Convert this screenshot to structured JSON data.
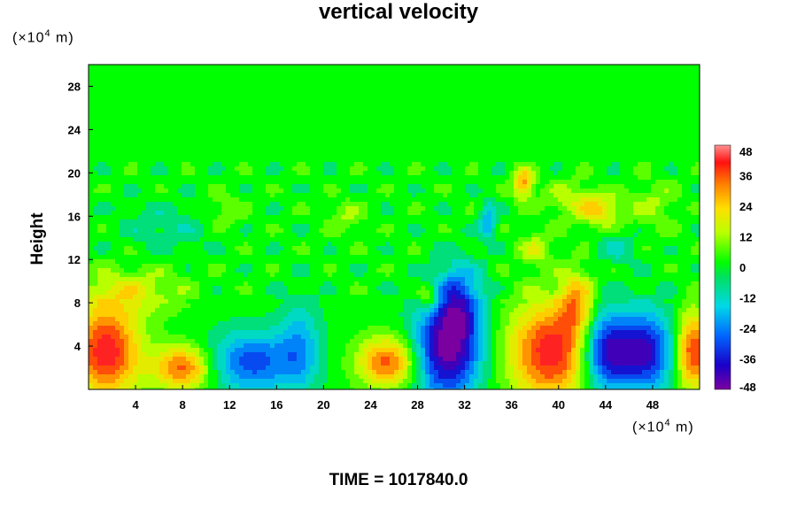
{
  "chart_data": {
    "type": "heatmap",
    "title": "vertical velocity",
    "ylabel": "Height",
    "y_unit": {
      "prefix": "(×10",
      "exp": "4",
      "suffix": " m)"
    },
    "x_unit": {
      "prefix": "(×10",
      "exp": "4",
      "suffix": " m)"
    },
    "xlim": [
      0,
      52
    ],
    "ylim": [
      0,
      30
    ],
    "x_ticks": [
      "4",
      "8",
      "12",
      "16",
      "20",
      "24",
      "28",
      "32",
      "36",
      "40",
      "44",
      "48"
    ],
    "y_ticks": [
      "4",
      "8",
      "12",
      "16",
      "20",
      "24",
      "28"
    ],
    "colorbar": {
      "min": -48,
      "max": 48,
      "ticks": [
        "48",
        "36",
        "24",
        "12",
        "0",
        "-12",
        "-24",
        "-36",
        "-48"
      ]
    },
    "features": [
      {
        "x": 1.5,
        "y": 3.5,
        "sx": 2.0,
        "sy": 3.0,
        "value": 44
      },
      {
        "x": 8.0,
        "y": 2.0,
        "sx": 1.7,
        "sy": 1.4,
        "value": 36
      },
      {
        "x": 14.0,
        "y": 2.5,
        "sx": 2.6,
        "sy": 2.0,
        "value": -30
      },
      {
        "x": 18.0,
        "y": 4.0,
        "sx": 1.2,
        "sy": 3.0,
        "value": -18
      },
      {
        "x": 25.5,
        "y": 2.5,
        "sx": 1.8,
        "sy": 1.6,
        "value": 36
      },
      {
        "x": 30.5,
        "y": 3.5,
        "sx": 2.0,
        "sy": 3.2,
        "value": -46
      },
      {
        "x": 31.5,
        "y": 8.0,
        "sx": 1.4,
        "sy": 2.5,
        "value": -28
      },
      {
        "x": 39.5,
        "y": 3.5,
        "sx": 2.6,
        "sy": 3.2,
        "value": 44
      },
      {
        "x": 41.5,
        "y": 8.0,
        "sx": 1.0,
        "sy": 2.0,
        "value": 24
      },
      {
        "x": 44.0,
        "y": 3.5,
        "sx": 1.6,
        "sy": 2.6,
        "value": -46
      },
      {
        "x": 47.5,
        "y": 3.5,
        "sx": 1.6,
        "sy": 2.6,
        "value": -38
      },
      {
        "x": 51.5,
        "y": 3.5,
        "sx": 1.0,
        "sy": 2.5,
        "value": 40
      },
      {
        "x": 37.0,
        "y": 19.0,
        "sx": 0.6,
        "sy": 1.0,
        "value": 30
      },
      {
        "x": 43.5,
        "y": 16.5,
        "sx": 1.2,
        "sy": 1.0,
        "value": 22
      },
      {
        "x": 34.0,
        "y": 15.5,
        "sx": 0.5,
        "sy": 1.2,
        "value": -22
      },
      {
        "x": 41.0,
        "y": 17.5,
        "sx": 1.5,
        "sy": 1.2,
        "value": 12
      },
      {
        "x": 48.0,
        "y": 17.0,
        "sx": 1.5,
        "sy": 1.5,
        "value": 10
      },
      {
        "x": 6.5,
        "y": 15.0,
        "sx": 2.5,
        "sy": 1.5,
        "value": -8
      },
      {
        "x": 4.0,
        "y": 9.0,
        "sx": 3.0,
        "sy": 1.5,
        "value": 14
      },
      {
        "x": 29.0,
        "y": 8.5,
        "sx": 0.6,
        "sy": 0.8,
        "value": 22
      },
      {
        "x": 22.0,
        "y": 16.0,
        "sx": 1.0,
        "sy": 1.0,
        "value": 10
      },
      {
        "x": 38.0,
        "y": 13.0,
        "sx": 1.0,
        "sy": 1.0,
        "value": 14
      },
      {
        "x": 45.0,
        "y": 13.0,
        "sx": 1.2,
        "sy": 1.0,
        "value": -10
      },
      {
        "x": 11.5,
        "y": 16.5,
        "sx": 1.2,
        "sy": 1.0,
        "value": 8
      }
    ]
  },
  "footer": {
    "time_label": "TIME = 1017840.0"
  }
}
